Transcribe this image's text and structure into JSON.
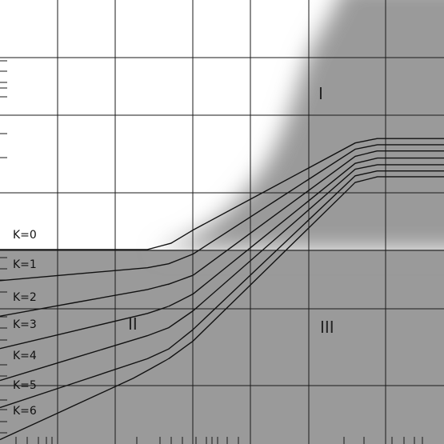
{
  "chart_data": {
    "type": "line",
    "title": "",
    "xlabel": "",
    "ylabel": "",
    "grid": true,
    "regions": [
      {
        "label": "I"
      },
      {
        "label": "II"
      },
      {
        "label": "III"
      }
    ],
    "series": [
      {
        "name": "K=0",
        "points": [
          [
            0.0,
            0.562
          ],
          [
            0.332,
            0.562
          ],
          [
            0.385,
            0.548
          ],
          [
            0.435,
            0.518
          ],
          [
            0.8,
            0.322
          ],
          [
            0.85,
            0.312
          ],
          [
            1.0,
            0.312
          ]
        ]
      },
      {
        "name": "K=1",
        "points": [
          [
            0.0,
            0.632
          ],
          [
            0.332,
            0.603
          ],
          [
            0.38,
            0.594
          ],
          [
            0.435,
            0.572
          ],
          [
            0.8,
            0.336
          ],
          [
            0.85,
            0.326
          ],
          [
            1.0,
            0.326
          ]
        ]
      },
      {
        "name": "K=2",
        "points": [
          [
            0.0,
            0.712
          ],
          [
            0.332,
            0.652
          ],
          [
            0.38,
            0.64
          ],
          [
            0.435,
            0.62
          ],
          [
            0.8,
            0.352
          ],
          [
            0.85,
            0.34
          ],
          [
            1.0,
            0.34
          ]
        ]
      },
      {
        "name": "K=3",
        "points": [
          [
            0.0,
            0.785
          ],
          [
            0.332,
            0.706
          ],
          [
            0.38,
            0.69
          ],
          [
            0.435,
            0.662
          ],
          [
            0.8,
            0.368
          ],
          [
            0.85,
            0.356
          ],
          [
            1.0,
            0.356
          ]
        ]
      },
      {
        "name": "K=4",
        "points": [
          [
            0.0,
            0.857
          ],
          [
            0.332,
            0.756
          ],
          [
            0.38,
            0.738
          ],
          [
            0.435,
            0.7
          ],
          [
            0.8,
            0.381
          ],
          [
            0.85,
            0.371
          ],
          [
            1.0,
            0.371
          ]
        ]
      },
      {
        "name": "K=5",
        "points": [
          [
            0.0,
            0.918
          ],
          [
            0.332,
            0.808
          ],
          [
            0.38,
            0.786
          ],
          [
            0.435,
            0.742
          ],
          [
            0.8,
            0.396
          ],
          [
            0.85,
            0.385
          ],
          [
            1.0,
            0.385
          ]
        ]
      },
      {
        "name": "K=6",
        "points": [
          [
            0.0,
            0.99
          ],
          [
            0.3,
            0.852
          ],
          [
            0.38,
            0.808
          ],
          [
            0.435,
            0.768
          ],
          [
            0.8,
            0.411
          ],
          [
            0.85,
            0.398
          ],
          [
            1.0,
            0.398
          ]
        ]
      }
    ],
    "colors": {
      "background": "#ffffff",
      "shade": "#9a9a9a",
      "grid": "#1a1a1a",
      "curve": "#111111"
    }
  }
}
